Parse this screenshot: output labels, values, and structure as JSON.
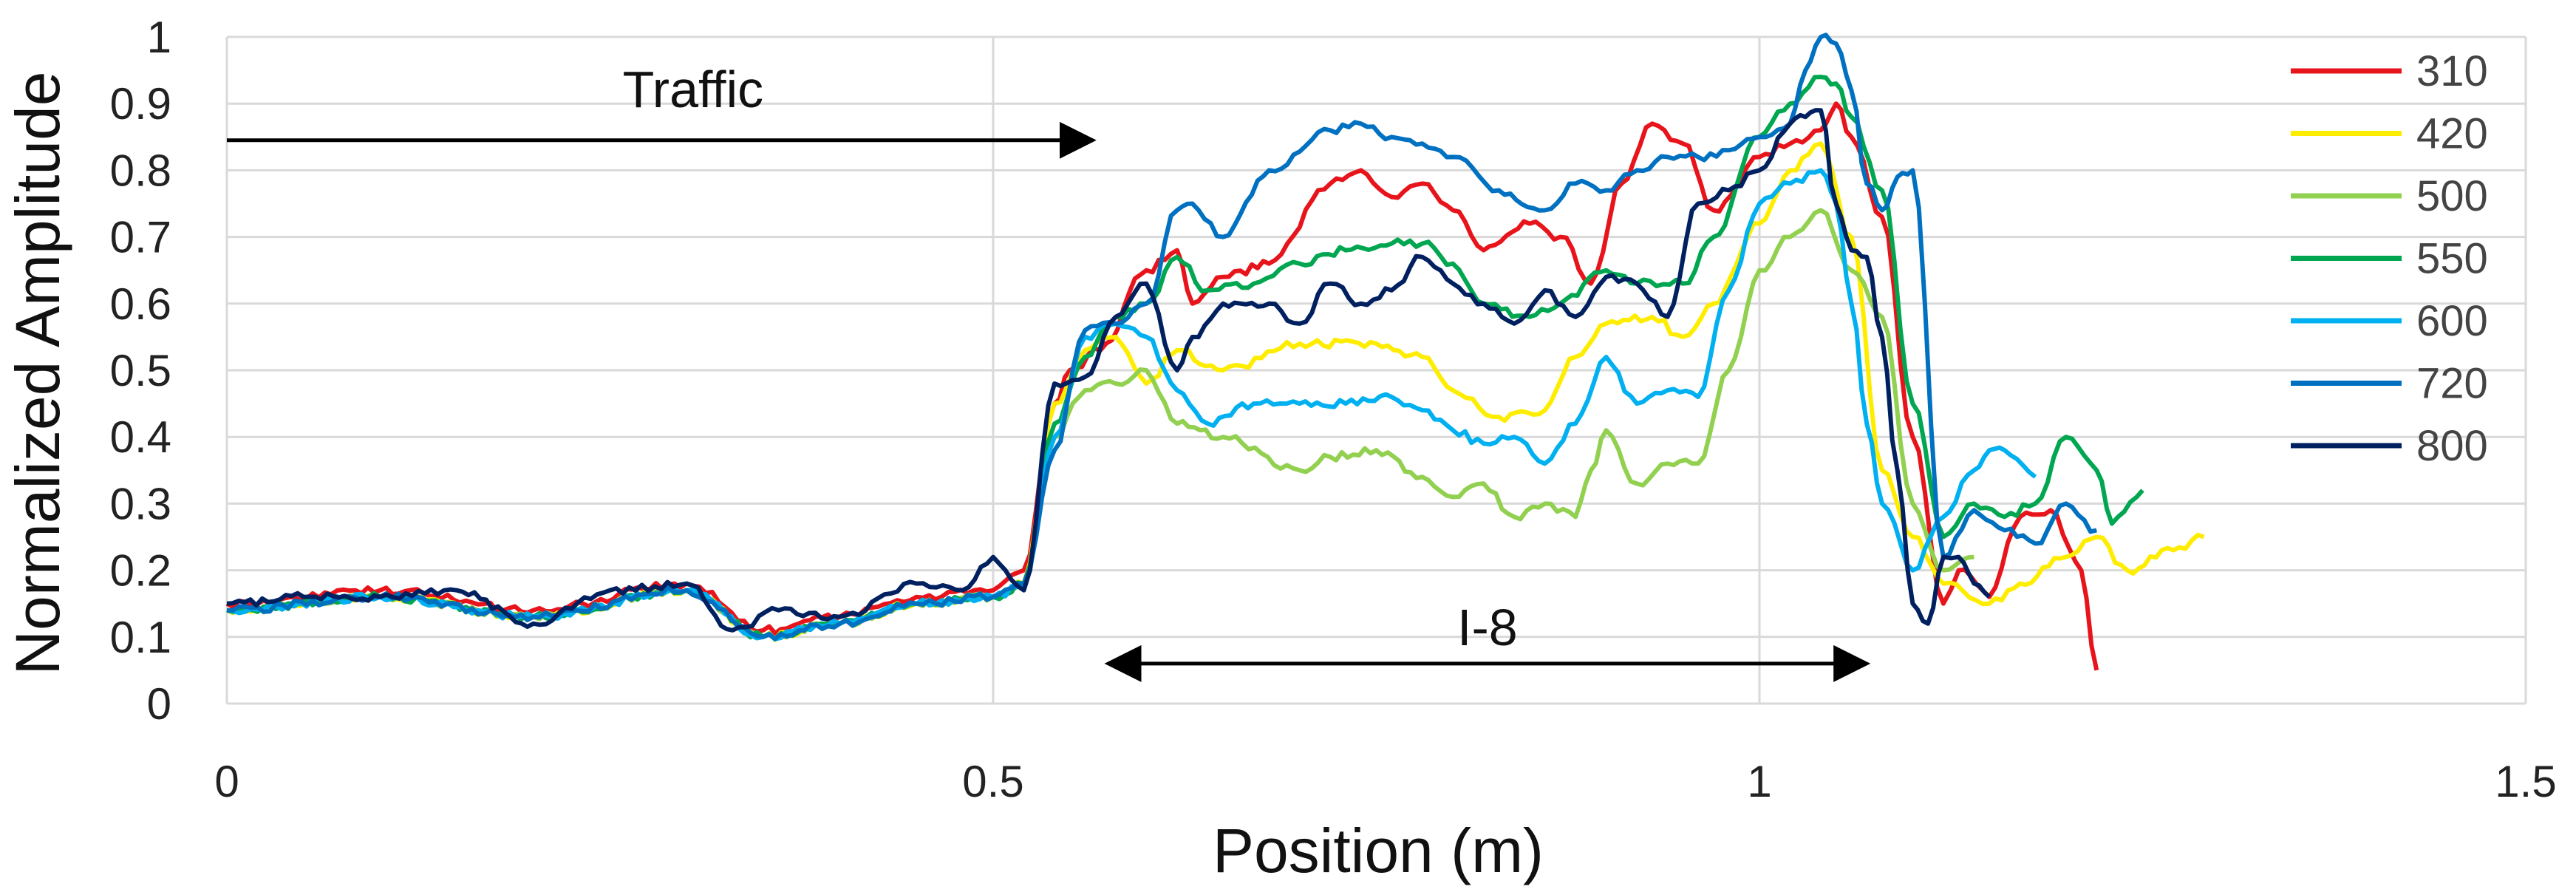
{
  "chart_data": {
    "type": "line",
    "xlabel": "Position (m)",
    "ylabel": "Normalized Amplitude",
    "xlim": [
      0,
      1.5
    ],
    "ylim": [
      0,
      1
    ],
    "x_ticks": [
      "0",
      "0.5",
      "1",
      "1.5"
    ],
    "y_ticks": [
      "0",
      "0.1",
      "0.2",
      "0.3",
      "0.4",
      "0.5",
      "0.6",
      "0.7",
      "0.8",
      "0.9",
      "1"
    ],
    "grid": true,
    "legend_position": "right",
    "annotations": [
      {
        "text": "Traffic",
        "arrow": "right",
        "x_start": 0.0,
        "x_end": 0.565,
        "y": 0.845
      },
      {
        "text": "I-8",
        "arrow": "double",
        "x_start": 0.575,
        "x_end": 1.07,
        "y": 0.06
      }
    ],
    "series": [
      {
        "name": "310",
        "color": "#e8141b",
        "x": [
          0,
          0.1,
          0.2,
          0.3,
          0.35,
          0.4,
          0.45,
          0.5,
          0.52,
          0.54,
          0.55,
          0.57,
          0.6,
          0.62,
          0.63,
          0.65,
          0.68,
          0.72,
          0.74,
          0.76,
          0.78,
          0.8,
          0.82,
          0.85,
          0.87,
          0.89,
          0.91,
          0.93,
          0.95,
          0.97,
          1.0,
          1.02,
          1.04,
          1.05,
          1.06,
          1.08,
          1.1,
          1.12,
          1.13,
          1.15,
          1.17,
          1.19,
          1.21,
          1.22
        ],
        "y": [
          0.15,
          0.17,
          0.14,
          0.18,
          0.11,
          0.13,
          0.16,
          0.17,
          0.2,
          0.45,
          0.5,
          0.53,
          0.65,
          0.68,
          0.6,
          0.64,
          0.66,
          0.78,
          0.8,
          0.76,
          0.78,
          0.74,
          0.68,
          0.72,
          0.7,
          0.63,
          0.78,
          0.87,
          0.84,
          0.74,
          0.82,
          0.84,
          0.86,
          0.9,
          0.85,
          0.73,
          0.4,
          0.15,
          0.2,
          0.16,
          0.28,
          0.29,
          0.2,
          0.05
        ]
      },
      {
        "name": "420",
        "color": "#ffed00",
        "x": [
          0,
          0.1,
          0.2,
          0.3,
          0.35,
          0.4,
          0.45,
          0.5,
          0.52,
          0.54,
          0.56,
          0.58,
          0.6,
          0.62,
          0.65,
          0.7,
          0.75,
          0.78,
          0.8,
          0.83,
          0.86,
          0.88,
          0.9,
          0.93,
          0.95,
          0.97,
          1.0,
          1.02,
          1.04,
          1.06,
          1.08,
          1.1,
          1.12,
          1.15,
          1.17,
          1.2,
          1.22,
          1.24,
          1.27,
          1.29
        ],
        "y": [
          0.14,
          0.16,
          0.13,
          0.17,
          0.1,
          0.12,
          0.15,
          0.16,
          0.18,
          0.45,
          0.53,
          0.55,
          0.48,
          0.53,
          0.5,
          0.54,
          0.54,
          0.52,
          0.47,
          0.43,
          0.44,
          0.52,
          0.57,
          0.58,
          0.55,
          0.6,
          0.72,
          0.8,
          0.84,
          0.7,
          0.35,
          0.25,
          0.18,
          0.15,
          0.18,
          0.22,
          0.25,
          0.2,
          0.23,
          0.25
        ]
      },
      {
        "name": "500",
        "color": "#92d050",
        "x": [
          0,
          0.1,
          0.2,
          0.3,
          0.35,
          0.4,
          0.45,
          0.5,
          0.52,
          0.54,
          0.56,
          0.58,
          0.6,
          0.62,
          0.65,
          0.7,
          0.72,
          0.75,
          0.78,
          0.8,
          0.82,
          0.84,
          0.86,
          0.88,
          0.89,
          0.9,
          0.92,
          0.94,
          0.96,
          0.98,
          1.0,
          1.02,
          1.04,
          1.06,
          1.08,
          1.1,
          1.12,
          1.14
        ],
        "y": [
          0.14,
          0.16,
          0.13,
          0.17,
          0.1,
          0.12,
          0.15,
          0.16,
          0.18,
          0.4,
          0.47,
          0.48,
          0.5,
          0.42,
          0.4,
          0.35,
          0.37,
          0.38,
          0.34,
          0.31,
          0.33,
          0.28,
          0.3,
          0.28,
          0.35,
          0.41,
          0.33,
          0.36,
          0.36,
          0.5,
          0.65,
          0.7,
          0.74,
          0.65,
          0.58,
          0.3,
          0.2,
          0.22
        ]
      },
      {
        "name": "550",
        "color": "#00a650",
        "x": [
          0,
          0.1,
          0.2,
          0.3,
          0.35,
          0.4,
          0.45,
          0.5,
          0.52,
          0.54,
          0.56,
          0.58,
          0.6,
          0.62,
          0.64,
          0.67,
          0.7,
          0.73,
          0.76,
          0.78,
          0.8,
          0.82,
          0.85,
          0.87,
          0.9,
          0.92,
          0.95,
          0.97,
          1.0,
          1.02,
          1.04,
          1.05,
          1.06,
          1.08,
          1.1,
          1.12,
          1.14,
          1.16,
          1.18,
          1.2,
          1.22,
          1.23,
          1.25
        ],
        "y": [
          0.14,
          0.16,
          0.13,
          0.17,
          0.1,
          0.12,
          0.15,
          0.16,
          0.18,
          0.42,
          0.52,
          0.58,
          0.6,
          0.67,
          0.62,
          0.63,
          0.66,
          0.68,
          0.69,
          0.69,
          0.66,
          0.6,
          0.58,
          0.6,
          0.65,
          0.63,
          0.63,
          0.7,
          0.85,
          0.9,
          0.94,
          0.93,
          0.88,
          0.77,
          0.45,
          0.25,
          0.3,
          0.28,
          0.3,
          0.4,
          0.35,
          0.27,
          0.32
        ]
      },
      {
        "name": "600",
        "color": "#00b0f0",
        "x": [
          0,
          0.1,
          0.2,
          0.3,
          0.35,
          0.4,
          0.45,
          0.5,
          0.52,
          0.54,
          0.56,
          0.58,
          0.6,
          0.62,
          0.64,
          0.67,
          0.7,
          0.73,
          0.76,
          0.78,
          0.8,
          0.82,
          0.84,
          0.86,
          0.88,
          0.9,
          0.92,
          0.94,
          0.96,
          0.98,
          1.0,
          1.02,
          1.04,
          1.05,
          1.06,
          1.07,
          1.08,
          1.1,
          1.12,
          1.14,
          1.15,
          1.16,
          1.18
        ],
        "y": [
          0.14,
          0.16,
          0.13,
          0.17,
          0.1,
          0.12,
          0.15,
          0.16,
          0.18,
          0.4,
          0.55,
          0.57,
          0.55,
          0.47,
          0.42,
          0.45,
          0.45,
          0.45,
          0.46,
          0.44,
          0.41,
          0.39,
          0.4,
          0.36,
          0.42,
          0.52,
          0.45,
          0.47,
          0.46,
          0.62,
          0.75,
          0.78,
          0.8,
          0.75,
          0.6,
          0.42,
          0.3,
          0.2,
          0.28,
          0.35,
          0.38,
          0.38,
          0.34
        ]
      },
      {
        "name": "720",
        "color": "#0070c0",
        "x": [
          0,
          0.1,
          0.2,
          0.3,
          0.35,
          0.4,
          0.45,
          0.5,
          0.52,
          0.54,
          0.56,
          0.58,
          0.6,
          0.62,
          0.63,
          0.65,
          0.68,
          0.72,
          0.74,
          0.76,
          0.78,
          0.8,
          0.83,
          0.86,
          0.88,
          0.9,
          0.92,
          0.94,
          0.96,
          0.98,
          1.0,
          1.02,
          1.03,
          1.04,
          1.05,
          1.06,
          1.07,
          1.08,
          1.09,
          1.1,
          1.12,
          1.14,
          1.16,
          1.18,
          1.2,
          1.22
        ],
        "y": [
          0.14,
          0.16,
          0.13,
          0.17,
          0.1,
          0.12,
          0.15,
          0.16,
          0.18,
          0.38,
          0.56,
          0.57,
          0.6,
          0.74,
          0.75,
          0.7,
          0.8,
          0.86,
          0.87,
          0.85,
          0.84,
          0.82,
          0.77,
          0.74,
          0.78,
          0.77,
          0.8,
          0.82,
          0.82,
          0.83,
          0.85,
          0.87,
          0.95,
          1.0,
          0.99,
          0.92,
          0.78,
          0.74,
          0.79,
          0.8,
          0.22,
          0.29,
          0.26,
          0.24,
          0.3,
          0.26
        ]
      },
      {
        "name": "800",
        "color": "#002060",
        "x": [
          0,
          0.05,
          0.1,
          0.15,
          0.2,
          0.25,
          0.3,
          0.33,
          0.36,
          0.4,
          0.45,
          0.48,
          0.5,
          0.52,
          0.54,
          0.56,
          0.58,
          0.6,
          0.62,
          0.63,
          0.65,
          0.68,
          0.7,
          0.72,
          0.74,
          0.76,
          0.78,
          0.8,
          0.82,
          0.84,
          0.86,
          0.88,
          0.9,
          0.92,
          0.94,
          0.96,
          0.98,
          1.0,
          1.02,
          1.03,
          1.04,
          1.05,
          1.06,
          1.07,
          1.08,
          1.09,
          1.1,
          1.11,
          1.12,
          1.13,
          1.14,
          1.15
        ],
        "y": [
          0.15,
          0.16,
          0.16,
          0.17,
          0.12,
          0.17,
          0.18,
          0.11,
          0.14,
          0.13,
          0.18,
          0.17,
          0.22,
          0.17,
          0.48,
          0.49,
          0.58,
          0.63,
          0.5,
          0.55,
          0.6,
          0.6,
          0.57,
          0.63,
          0.6,
          0.62,
          0.67,
          0.63,
          0.6,
          0.57,
          0.62,
          0.58,
          0.64,
          0.63,
          0.58,
          0.75,
          0.77,
          0.8,
          0.87,
          0.88,
          0.89,
          0.75,
          0.68,
          0.67,
          0.55,
          0.35,
          0.15,
          0.12,
          0.22,
          0.22,
          0.18,
          0.16
        ]
      }
    ]
  }
}
